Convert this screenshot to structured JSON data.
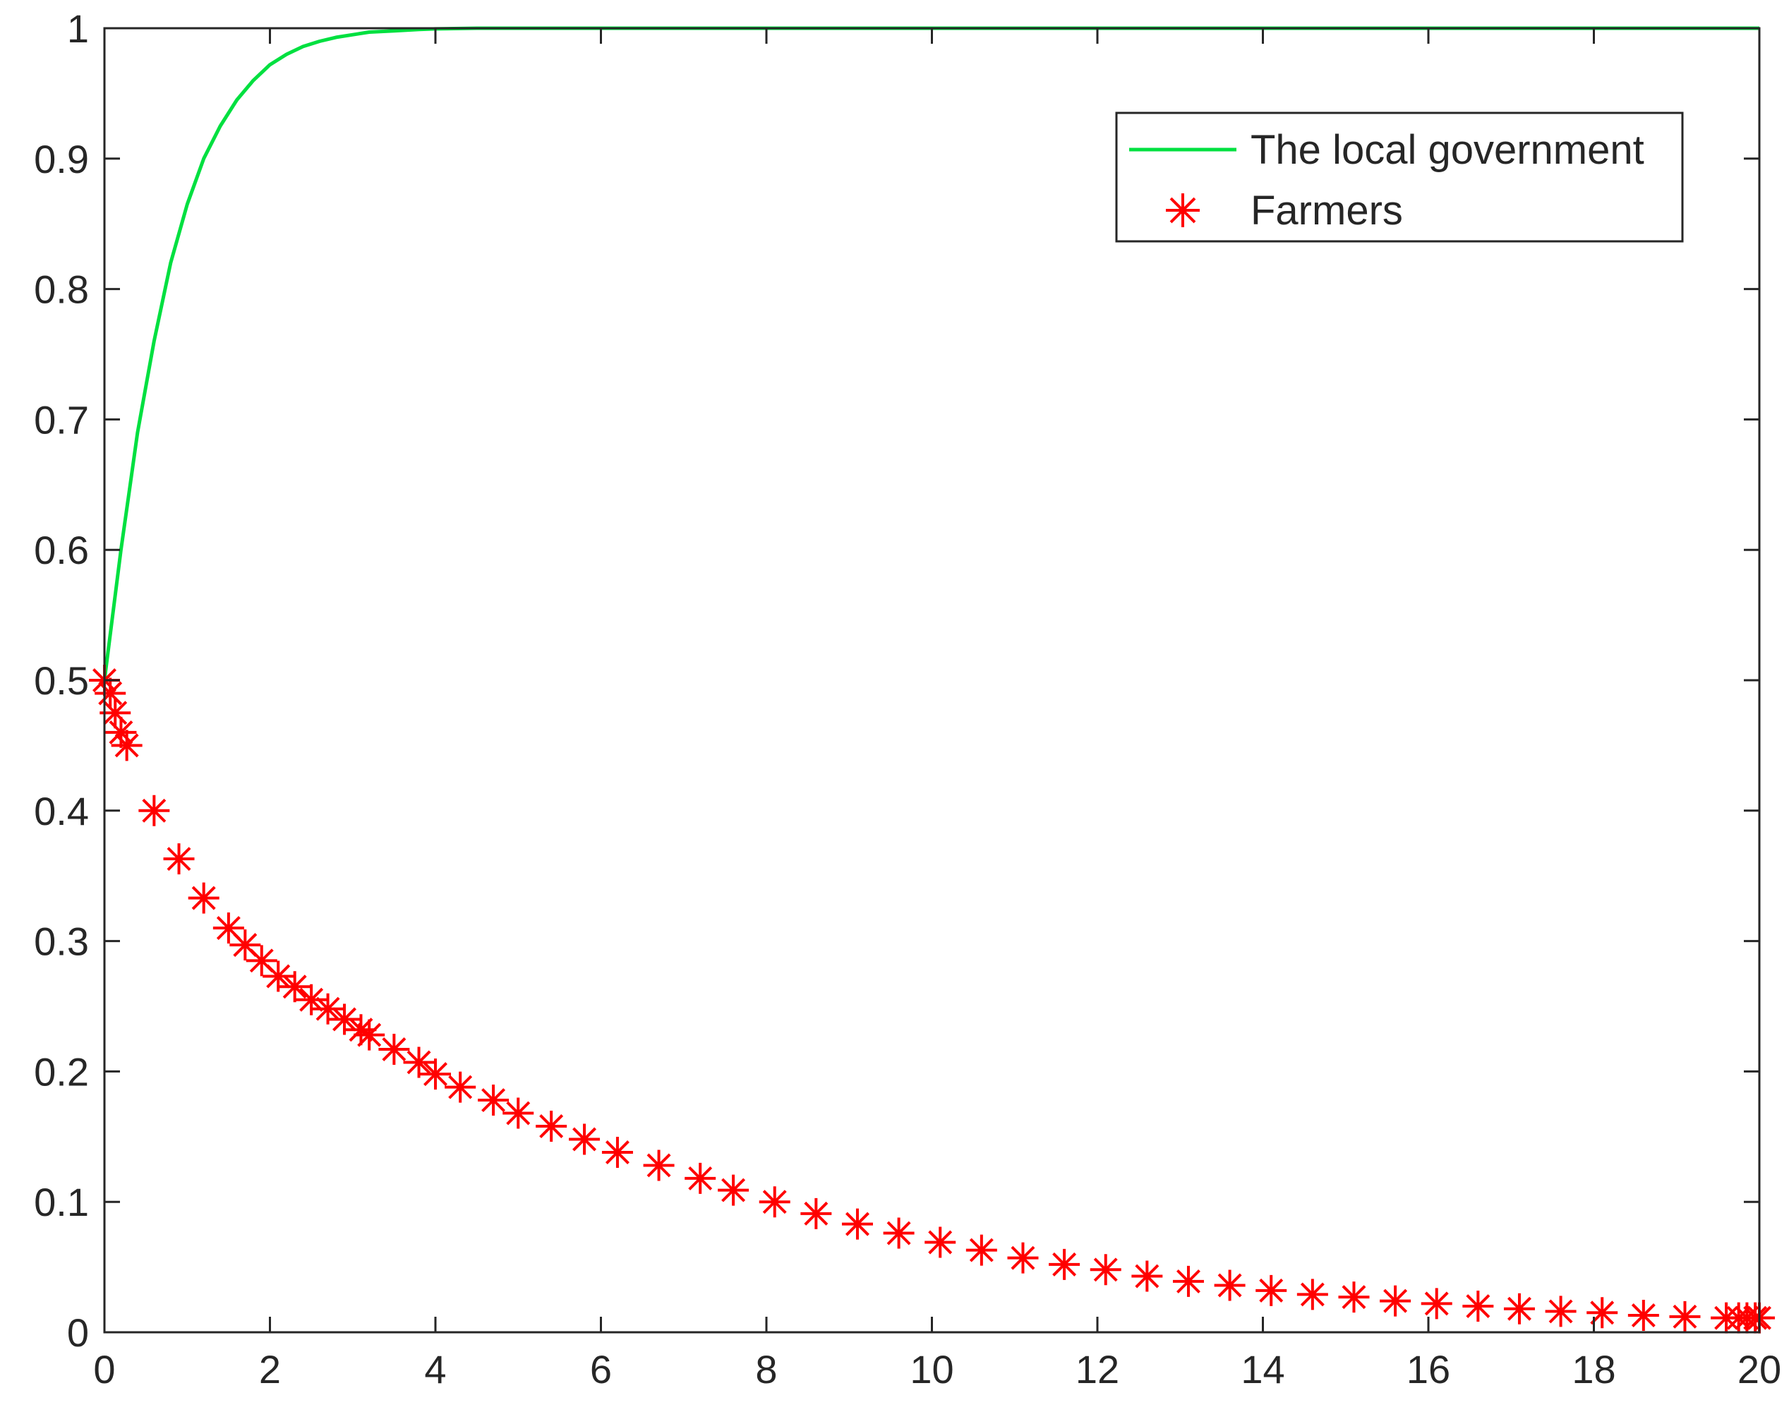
{
  "chart_data": {
    "type": "line",
    "title": "",
    "xlabel": "",
    "ylabel": "",
    "xlim": [
      0,
      20
    ],
    "ylim": [
      0,
      1
    ],
    "x_ticks": [
      0,
      2,
      4,
      6,
      8,
      10,
      12,
      14,
      16,
      18,
      20
    ],
    "y_ticks": [
      0,
      0.1,
      0.2,
      0.3,
      0.4,
      0.5,
      0.6,
      0.7,
      0.8,
      0.9,
      1
    ],
    "x_tick_labels": [
      "0",
      "2",
      "4",
      "6",
      "8",
      "10",
      "12",
      "14",
      "16",
      "18",
      "20"
    ],
    "y_tick_labels": [
      "0",
      "0.1",
      "0.2",
      "0.3",
      "0.4",
      "0.5",
      "0.6",
      "0.7",
      "0.8",
      "0.9",
      "1"
    ],
    "grid": false,
    "legend_position": "top-right",
    "series": [
      {
        "name": "The local government",
        "style": "line",
        "color": "#00e040",
        "x": [
          0,
          0.1,
          0.2,
          0.3,
          0.4,
          0.5,
          0.6,
          0.8,
          1.0,
          1.2,
          1.4,
          1.6,
          1.8,
          2.0,
          2.2,
          2.4,
          2.6,
          2.8,
          3.0,
          3.2,
          3.5,
          3.8,
          4.0,
          4.5,
          5.0,
          6.0,
          8.0,
          10.0,
          14.0,
          20.0
        ],
        "y": [
          0.5,
          0.55,
          0.6,
          0.645,
          0.69,
          0.725,
          0.76,
          0.82,
          0.865,
          0.9,
          0.925,
          0.945,
          0.96,
          0.972,
          0.98,
          0.986,
          0.99,
          0.993,
          0.995,
          0.997,
          0.998,
          0.999,
          0.9995,
          1.0,
          1.0,
          1.0,
          1.0,
          1.0,
          1.0,
          1.0
        ]
      },
      {
        "name": "Farmers",
        "style": "marker",
        "marker": "asterisk",
        "color": "#ff0000",
        "x": [
          0,
          0.07,
          0.13,
          0.2,
          0.27,
          0.6,
          0.9,
          1.2,
          1.5,
          1.7,
          1.9,
          2.1,
          2.3,
          2.5,
          2.7,
          2.9,
          3.1,
          3.2,
          3.5,
          3.8,
          4.0,
          4.3,
          4.7,
          5.0,
          5.4,
          5.8,
          6.2,
          6.7,
          7.2,
          7.6,
          8.1,
          8.6,
          9.1,
          9.6,
          10.1,
          10.6,
          11.1,
          11.6,
          12.1,
          12.6,
          13.1,
          13.6,
          14.1,
          14.6,
          15.1,
          15.6,
          16.1,
          16.6,
          17.1,
          17.6,
          18.1,
          18.6,
          19.1,
          19.6,
          19.75,
          19.85,
          19.95,
          20.0
        ],
        "y": [
          0.5,
          0.49,
          0.475,
          0.46,
          0.45,
          0.4,
          0.363,
          0.333,
          0.31,
          0.297,
          0.285,
          0.273,
          0.265,
          0.255,
          0.248,
          0.24,
          0.232,
          0.228,
          0.217,
          0.207,
          0.198,
          0.188,
          0.178,
          0.168,
          0.158,
          0.148,
          0.138,
          0.128,
          0.118,
          0.109,
          0.1,
          0.091,
          0.083,
          0.076,
          0.069,
          0.063,
          0.057,
          0.052,
          0.048,
          0.043,
          0.039,
          0.036,
          0.032,
          0.029,
          0.027,
          0.024,
          0.022,
          0.02,
          0.018,
          0.016,
          0.015,
          0.013,
          0.012,
          0.011,
          0.011,
          0.011,
          0.011,
          0.011
        ]
      }
    ]
  }
}
